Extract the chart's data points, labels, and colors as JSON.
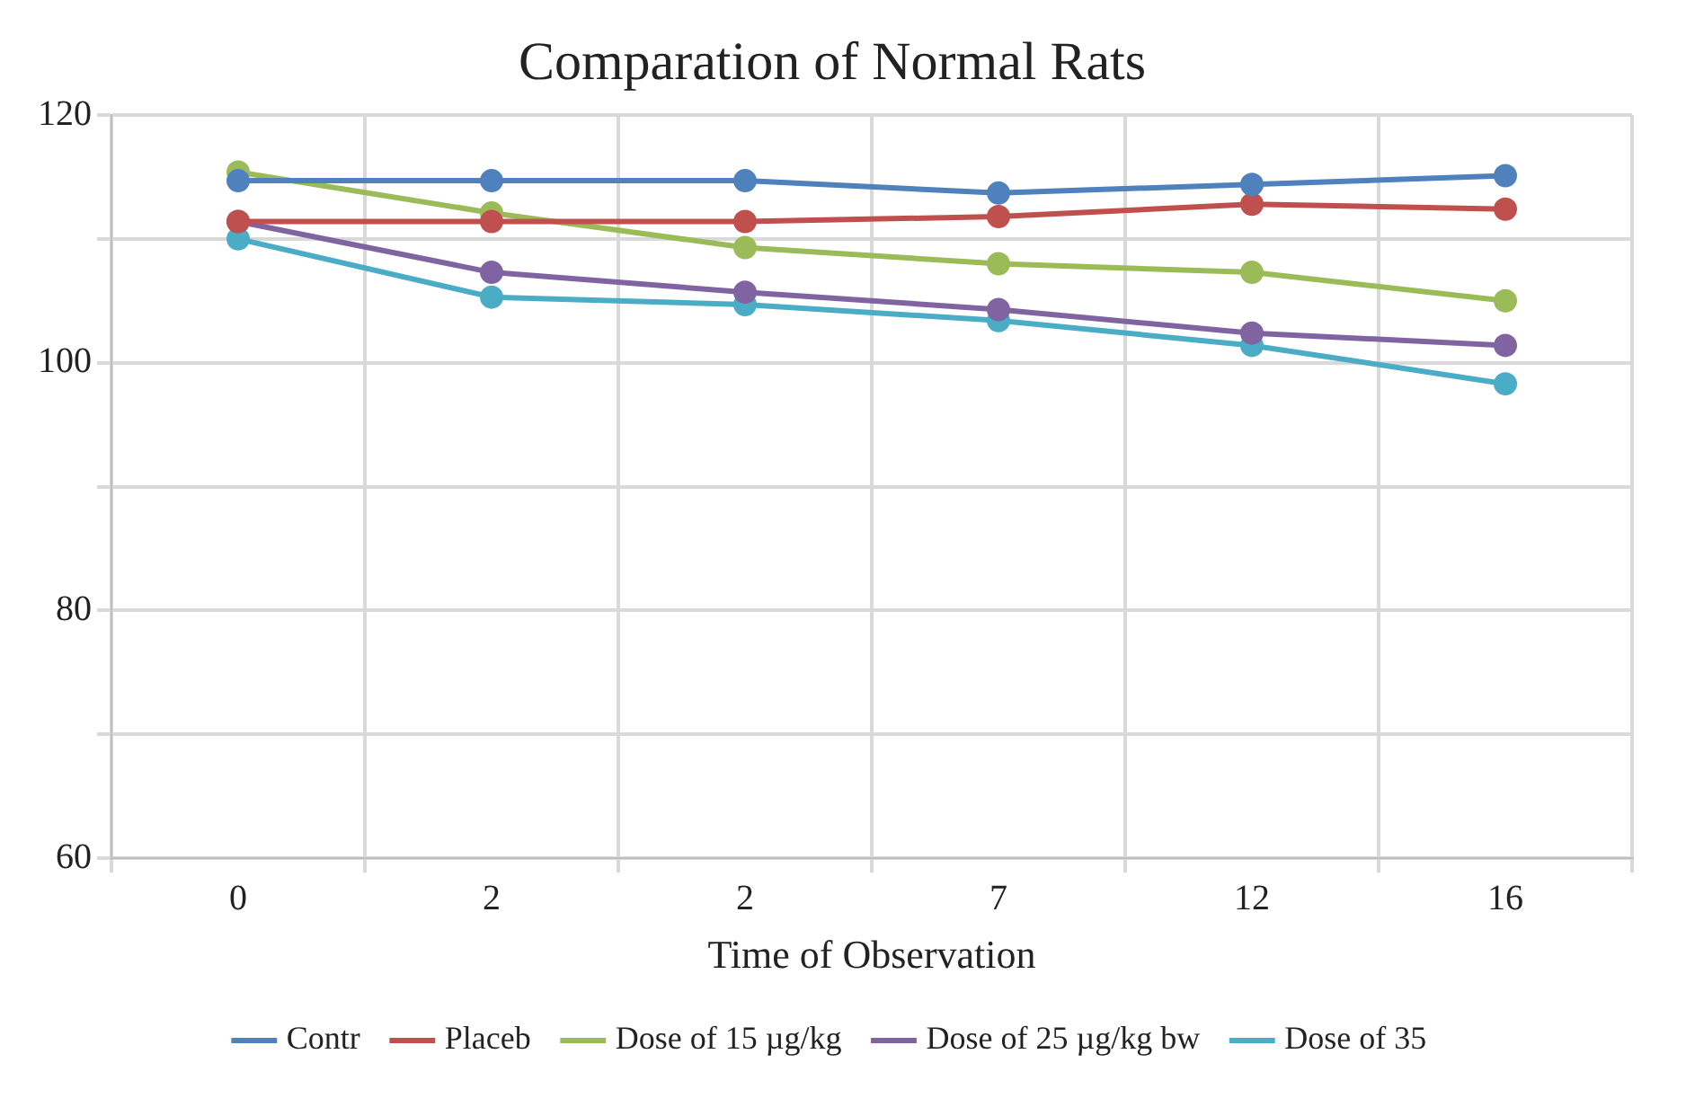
{
  "chart_data": {
    "type": "line",
    "title": "Comparation of Normal Rats",
    "xlabel": "Time of Observation",
    "categories": [
      "0",
      "2",
      "2",
      "7",
      "12",
      "16"
    ],
    "series": [
      {
        "name": "Contr",
        "color": "#4f81bd",
        "values": [
          114.7,
          114.7,
          114.7,
          113.7,
          114.4,
          115.1
        ]
      },
      {
        "name": "Placeb",
        "color": "#c0504d",
        "values": [
          111.4,
          111.4,
          111.4,
          111.8,
          112.8,
          112.4
        ]
      },
      {
        "name": "Dose of 15 µg/kg",
        "color": "#9bbb59",
        "values": [
          115.4,
          112.1,
          109.3,
          108.0,
          107.3,
          105.0
        ]
      },
      {
        "name": "Dose of 25 µg/kg bw",
        "color": "#8064a2",
        "values": [
          111.4,
          107.3,
          105.7,
          104.3,
          102.4,
          101.4
        ]
      },
      {
        "name": "Dose of 35",
        "color": "#4bacc6",
        "values": [
          110.0,
          105.3,
          104.7,
          103.4,
          101.4,
          98.3
        ]
      }
    ],
    "ylim": [
      60,
      120
    ],
    "yticks": [
      60,
      {
        "value": 70,
        "label": null
      },
      80,
      {
        "value": 90,
        "label": null
      },
      100,
      {
        "value": 110,
        "label": null
      },
      120
    ],
    "grid": true,
    "legend": "bottom",
    "marker": "circle",
    "line_style": "solid"
  }
}
